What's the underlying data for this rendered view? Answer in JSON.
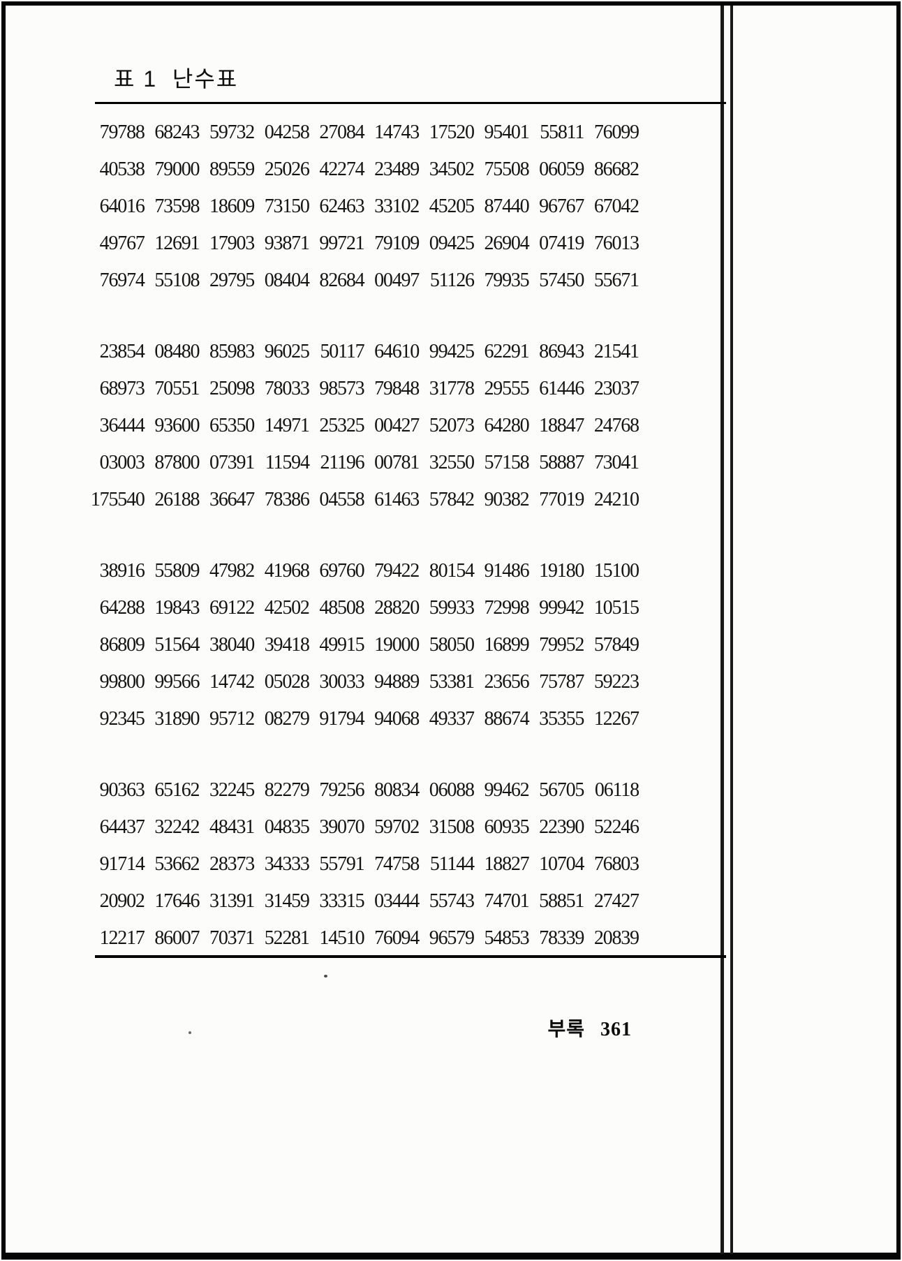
{
  "document": {
    "title": "표 1  난수표",
    "footer": {
      "label": "부록",
      "page_number": "361"
    }
  },
  "table": {
    "columns": 10,
    "blocks": [
      {
        "rows": [
          [
            "79788",
            "68243",
            "59732",
            "04258",
            "27084",
            "14743",
            "17520",
            "95401",
            "55811",
            "76099"
          ],
          [
            "40538",
            "79000",
            "89559",
            "25026",
            "42274",
            "23489",
            "34502",
            "75508",
            "06059",
            "86682"
          ],
          [
            "64016",
            "73598",
            "18609",
            "73150",
            "62463",
            "33102",
            "45205",
            "87440",
            "96767",
            "67042"
          ],
          [
            "49767",
            "12691",
            "17903",
            "93871",
            "99721",
            "79109",
            "09425",
            "26904",
            "07419",
            "76013"
          ],
          [
            "76974",
            "55108",
            "29795",
            "08404",
            "82684",
            "00497",
            "51126",
            "79935",
            "57450",
            "55671"
          ]
        ]
      },
      {
        "rows": [
          [
            "23854",
            "08480",
            "85983",
            "96025",
            "50117",
            "64610",
            "99425",
            "62291",
            "86943",
            "21541"
          ],
          [
            "68973",
            "70551",
            "25098",
            "78033",
            "98573",
            "79848",
            "31778",
            "29555",
            "61446",
            "23037"
          ],
          [
            "36444",
            "93600",
            "65350",
            "14971",
            "25325",
            "00427",
            "52073",
            "64280",
            "18847",
            "24768"
          ],
          [
            "03003",
            "87800",
            "07391",
            "11594",
            "21196",
            "00781",
            "32550",
            "57158",
            "58887",
            "73041"
          ],
          [
            "175540",
            "26188",
            "36647",
            "78386",
            "04558",
            "61463",
            "57842",
            "90382",
            "77019",
            "24210"
          ]
        ]
      },
      {
        "rows": [
          [
            "38916",
            "55809",
            "47982",
            "41968",
            "69760",
            "79422",
            "80154",
            "91486",
            "19180",
            "15100"
          ],
          [
            "64288",
            "19843",
            "69122",
            "42502",
            "48508",
            "28820",
            "59933",
            "72998",
            "99942",
            "10515"
          ],
          [
            "86809",
            "51564",
            "38040",
            "39418",
            "49915",
            "19000",
            "58050",
            "16899",
            "79952",
            "57849"
          ],
          [
            "99800",
            "99566",
            "14742",
            "05028",
            "30033",
            "94889",
            "53381",
            "23656",
            "75787",
            "59223"
          ],
          [
            "92345",
            "31890",
            "95712",
            "08279",
            "91794",
            "94068",
            "49337",
            "88674",
            "35355",
            "12267"
          ]
        ]
      },
      {
        "rows": [
          [
            "90363",
            "65162",
            "32245",
            "82279",
            "79256",
            "80834",
            "06088",
            "99462",
            "56705",
            "06118"
          ],
          [
            "64437",
            "32242",
            "48431",
            "04835",
            "39070",
            "59702",
            "31508",
            "60935",
            "22390",
            "52246"
          ],
          [
            "91714",
            "53662",
            "28373",
            "34333",
            "55791",
            "74758",
            "51144",
            "18827",
            "10704",
            "76803"
          ],
          [
            "20902",
            "17646",
            "31391",
            "31459",
            "33315",
            "03444",
            "55743",
            "74701",
            "58851",
            "27427"
          ],
          [
            "12217",
            "86007",
            "70371",
            "52281",
            "14510",
            "76094",
            "96579",
            "54853",
            "78339",
            "20839"
          ]
        ]
      }
    ]
  }
}
